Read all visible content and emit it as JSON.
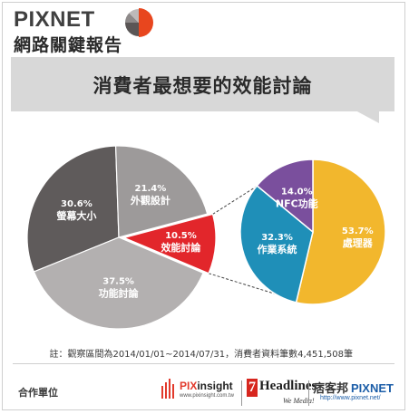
{
  "header": {
    "brand": "PIXNET",
    "report": "網路關鍵報告"
  },
  "chart_data": {
    "type": "pie",
    "title": "消費者最想要的效能討論",
    "pies": [
      {
        "name": "",
        "slices": [
          {
            "label": "螢幕大小",
            "value": 30.6,
            "display": "30.6%",
            "color": "#5f5b5b"
          },
          {
            "label": "外觀設計",
            "value": 21.4,
            "display": "21.4%",
            "color": "#9d9a9a"
          },
          {
            "label": "效能討論",
            "value": 10.5,
            "display": "10.5%",
            "color": "#e2262b"
          },
          {
            "label": "功能討論",
            "value": 37.5,
            "display": "37.5%",
            "color": "#b3b0b0"
          }
        ]
      },
      {
        "name": "",
        "slices": [
          {
            "label": "處理器",
            "value": 53.7,
            "display": "53.7%",
            "color": "#f2b72d"
          },
          {
            "label": "作業系統",
            "value": 32.3,
            "display": "32.3%",
            "color": "#1f8fb8"
          },
          {
            "label": "NFC功能",
            "value": 14.0,
            "display": "14.0%",
            "color": "#7a4f9d"
          }
        ]
      }
    ],
    "note": "註：觀察區間為2014/01/01~2014/07/31，消費者資料筆數4,451,508筆"
  },
  "logo_colors": [
    "#e8461e",
    "#5a5656",
    "#8e8a8a",
    "#bdbaba"
  ],
  "footer": {
    "partner_label": "合作單位",
    "pixinsight": {
      "name_prefix": "PIX",
      "name_suffix": "insight",
      "url": "www.pixinsight.com.tw"
    },
    "headlines": {
      "seven": "7",
      "name": "Headlines",
      "slogan": "We Media!"
    },
    "pixnet": {
      "cn": "痞客邦",
      "en": "PIXNET",
      "url": "http://www.pixnet.net/"
    }
  }
}
